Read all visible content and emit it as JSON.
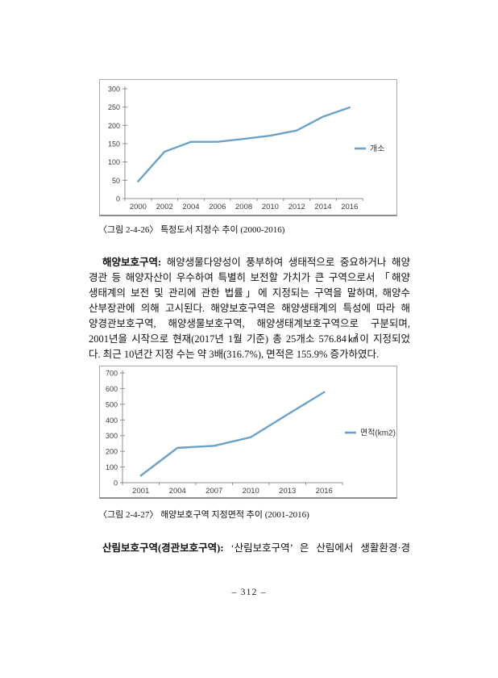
{
  "figures": [
    {
      "caption": "〈그림 2-4-26〉 특정도서 지정수 추이 (2000-2016)"
    },
    {
      "caption": "〈그림 2-4-27〉 해양보호구역 지정면적 추이 (2001-2016)"
    }
  ],
  "chart_data": [
    {
      "type": "line",
      "title": "",
      "categories": [
        "2000",
        "2002",
        "2004",
        "2006",
        "2008",
        "2010",
        "2012",
        "2014",
        "2016"
      ],
      "series": [
        {
          "name": "개소",
          "values": [
            47,
            128,
            155,
            155,
            163,
            172,
            186,
            224,
            249
          ]
        }
      ],
      "xlabel": "",
      "ylabel": "",
      "ylim": [
        0,
        300
      ],
      "ytick_step": 50,
      "grid": false,
      "legend_position": "right",
      "line_color": "#6ba2c9"
    },
    {
      "type": "line",
      "title": "",
      "categories": [
        "2001",
        "2004",
        "2007",
        "2010",
        "2013",
        "2016"
      ],
      "series": [
        {
          "name": "면적(km2)",
          "values": [
            45,
            222,
            235,
            290,
            435,
            577
          ]
        }
      ],
      "xlabel": "",
      "ylabel": "",
      "ylim": [
        0,
        700
      ],
      "ytick_step": 100,
      "grid": false,
      "legend_position": "right",
      "line_color": "#6ba2c9"
    }
  ],
  "paragraphs": {
    "marine": {
      "lead": "해양보호구역:",
      "line1_rest": "해양생물다양성이 풍부하여 생태적으로 중요하거나 해양",
      "lines": [
        "경관 등 해양자산이 우수하여 특별히 보전할 가치가 큰 구역으로서 「해양",
        "생태계의 보전 및 관리에 관한 법률」에 지정되는 구역을 말하며, 해양수",
        "산부장관에 의해 고시된다. 해양보호구역은 해양생태계의 특성에 따라 해",
        "양경관보호구역, 해양생물보호구역, 해양생태계보호구역으로 구분되며,",
        "2001년을 시작으로 현재(2017년 1월 기준) 총 25개소 576.84㎢이 지정되었",
        "다. 최근 10년간 지정 수는 약 3배(316.7%), 면적은 155.9% 증가하였다."
      ]
    },
    "forest": {
      "lead": "산림보호구역(경관보호구역):",
      "rest": "‘산림보호구역’ 은 산림에서 생활환경·경"
    }
  },
  "page_number": "– 312 –"
}
